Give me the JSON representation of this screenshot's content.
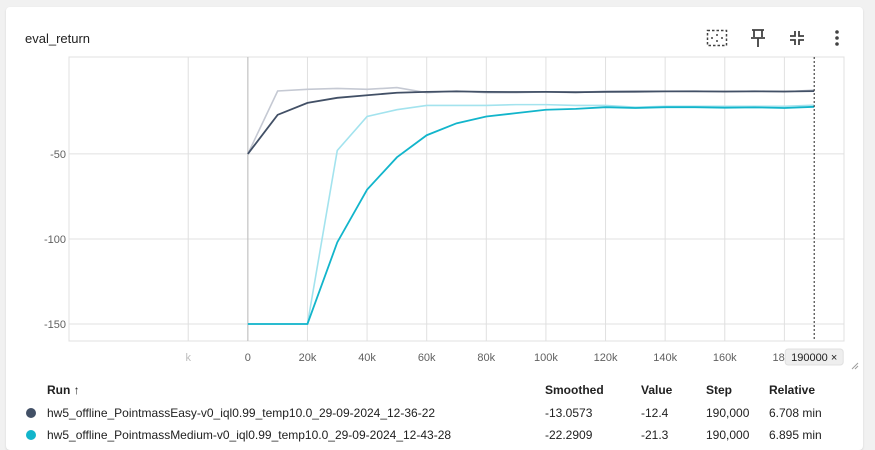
{
  "card": {
    "title": "eval_return",
    "toolbar": [
      {
        "icon": "fit-domain-icon"
      },
      {
        "icon": "pin-icon"
      },
      {
        "icon": "collapse-icon"
      },
      {
        "icon": "more-vert-icon"
      }
    ]
  },
  "chart_data": {
    "type": "line",
    "title": "eval_return",
    "xlabel": "",
    "ylabel": "",
    "xlim": [
      -60000,
      200000
    ],
    "ylim": [
      -160,
      7
    ],
    "x_ticks": [
      "k",
      "0",
      "20k",
      "40k",
      "60k",
      "80k",
      "100k",
      "120k",
      "140k",
      "160k",
      "180k"
    ],
    "y_ticks": [
      "-50",
      "-100",
      "-150"
    ],
    "y_tick_values": [
      -50,
      -100,
      -150
    ],
    "x_tick_values": [
      -20000,
      0,
      20000,
      40000,
      60000,
      80000,
      100000,
      120000,
      140000,
      160000,
      180000
    ],
    "cursor_label": "190000 ×",
    "cursor_step": 190000,
    "grid": true,
    "series": [
      {
        "name": "hw5_offline_PointmassEasy-v0_iql0.99_temp10.0_29-09-2024_12-36-22",
        "color": "#425066",
        "raw_color": "#c5c9d3",
        "x": [
          0,
          10000,
          20000,
          30000,
          40000,
          50000,
          60000,
          70000,
          80000,
          90000,
          100000,
          110000,
          120000,
          130000,
          140000,
          150000,
          160000,
          170000,
          180000,
          190000
        ],
        "smoothed": [
          -50,
          -27,
          -20,
          -17,
          -15.5,
          -14,
          -13.5,
          -13.2,
          -13.5,
          -13.6,
          -13.5,
          -13.7,
          -13.5,
          -13.4,
          -13.2,
          -13.2,
          -13.3,
          -13.2,
          -13.3,
          -13.06
        ],
        "raw": [
          -50,
          -13,
          -12,
          -11.5,
          -12,
          -11,
          -14,
          -13,
          -14,
          -14,
          -13.5,
          -14,
          -13,
          -13,
          -13.2,
          -13,
          -13.5,
          -13,
          -13.5,
          -12.4
        ]
      },
      {
        "name": "hw5_offline_PointmassMedium-v0_iql0.99_temp10.0_29-09-2024_12-43-28",
        "color": "#12b5cb",
        "raw_color": "#a3e3ee",
        "x": [
          0,
          10000,
          20000,
          30000,
          40000,
          50000,
          60000,
          70000,
          80000,
          90000,
          100000,
          110000,
          120000,
          130000,
          140000,
          150000,
          160000,
          170000,
          180000,
          190000
        ],
        "smoothed": [
          -150,
          -150,
          -150,
          -102,
          -71,
          -52,
          -39,
          -32,
          -28,
          -26,
          -24,
          -23.5,
          -22.5,
          -23,
          -22.5,
          -22.5,
          -22.8,
          -22.6,
          -23,
          -22.29
        ],
        "raw": [
          -150,
          -150,
          -150,
          -48,
          -28,
          -24,
          -21.5,
          -21.5,
          -21.5,
          -21,
          -21,
          -21.5,
          -21.5,
          -22.5,
          -22,
          -22,
          -22,
          -22,
          -22,
          -21.3
        ]
      }
    ]
  },
  "table": {
    "headers": {
      "run": "Run ↑",
      "smoothed": "Smoothed",
      "value": "Value",
      "step": "Step",
      "relative": "Relative"
    },
    "rows": [
      {
        "color": "#425066",
        "name": "hw5_offline_PointmassEasy-v0_iql0.99_temp10.0_29-09-2024_12-36-22",
        "smoothed": "-13.0573",
        "value": "-12.4",
        "step": "190,000",
        "relative": "6.708 min"
      },
      {
        "color": "#12b5cb",
        "name": "hw5_offline_PointmassMedium-v0_iql0.99_temp10.0_29-09-2024_12-43-28",
        "smoothed": "-22.2909",
        "value": "-21.3",
        "step": "190,000",
        "relative": "6.895 min"
      }
    ]
  }
}
